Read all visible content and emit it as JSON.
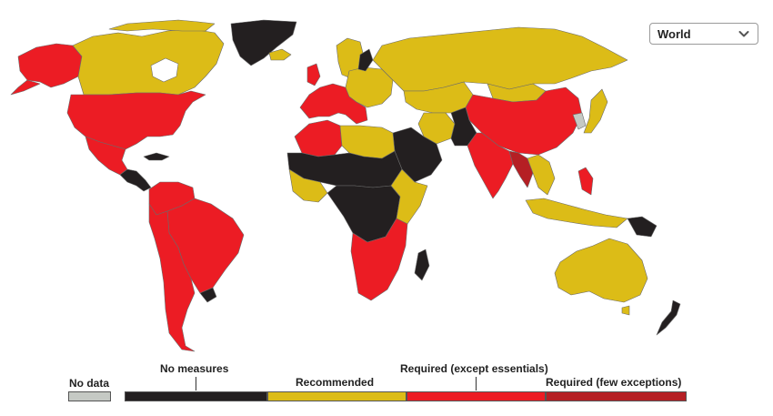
{
  "region_selector": {
    "value": "World",
    "icon": "chevron-down-icon"
  },
  "map": {
    "title": "",
    "categories": [
      {
        "key": "nodata",
        "label": "No data",
        "color": "#c5c9c4"
      },
      {
        "key": "none",
        "label": "No measures",
        "color": "#231f20"
      },
      {
        "key": "rec",
        "label": "Recommended",
        "color": "#dcbc17"
      },
      {
        "key": "req",
        "label": "Required (except essentials)",
        "color": "#ec1c24"
      },
      {
        "key": "few",
        "label": "Required (few exceptions)",
        "color": "#b51f24"
      }
    ],
    "regions": [
      {
        "name": "Alaska",
        "status": "req"
      },
      {
        "name": "Canada",
        "status": "rec"
      },
      {
        "name": "Greenland",
        "status": "none"
      },
      {
        "name": "United States",
        "status": "req"
      },
      {
        "name": "Mexico",
        "status": "req"
      },
      {
        "name": "Central America",
        "status": "none"
      },
      {
        "name": "Cuba",
        "status": "none"
      },
      {
        "name": "Colombia / Venezuela",
        "status": "req"
      },
      {
        "name": "Brazil",
        "status": "req"
      },
      {
        "name": "South America (south)",
        "status": "req"
      },
      {
        "name": "Uruguay",
        "status": "none"
      },
      {
        "name": "Iceland",
        "status": "rec"
      },
      {
        "name": "Scandinavia",
        "status": "rec"
      },
      {
        "name": "Western Europe",
        "status": "req"
      },
      {
        "name": "Eastern Europe",
        "status": "rec"
      },
      {
        "name": "Belarus",
        "status": "none"
      },
      {
        "name": "Russia",
        "status": "rec"
      },
      {
        "name": "North Africa (west)",
        "status": "req"
      },
      {
        "name": "Egypt / Libya",
        "status": "rec"
      },
      {
        "name": "Sahel",
        "status": "none"
      },
      {
        "name": "West Africa",
        "status": "rec"
      },
      {
        "name": "Central Africa",
        "status": "none"
      },
      {
        "name": "East Africa",
        "status": "rec"
      },
      {
        "name": "Southern Africa",
        "status": "req"
      },
      {
        "name": "Madagascar",
        "status": "none"
      },
      {
        "name": "Arabia",
        "status": "none"
      },
      {
        "name": "Iran",
        "status": "rec"
      },
      {
        "name": "Central Asia",
        "status": "rec"
      },
      {
        "name": "Pakistan / Afghanistan",
        "status": "none"
      },
      {
        "name": "India",
        "status": "req"
      },
      {
        "name": "Myanmar / Bangladesh",
        "status": "few"
      },
      {
        "name": "China",
        "status": "req"
      },
      {
        "name": "Mongolia",
        "status": "rec"
      },
      {
        "name": "Korea",
        "status": "nodata"
      },
      {
        "name": "Japan",
        "status": "rec"
      },
      {
        "name": "Southeast Asia",
        "status": "rec"
      },
      {
        "name": "Philippines",
        "status": "req"
      },
      {
        "name": "Indonesia",
        "status": "rec"
      },
      {
        "name": "Papua New Guinea",
        "status": "none"
      },
      {
        "name": "Australia",
        "status": "rec"
      },
      {
        "name": "New Zealand",
        "status": "none"
      }
    ]
  },
  "legend": {
    "nodata": "No data",
    "none": "No measures",
    "rec": "Recommended",
    "req": "Required (except essentials)",
    "few": "Required (few exceptions)"
  }
}
